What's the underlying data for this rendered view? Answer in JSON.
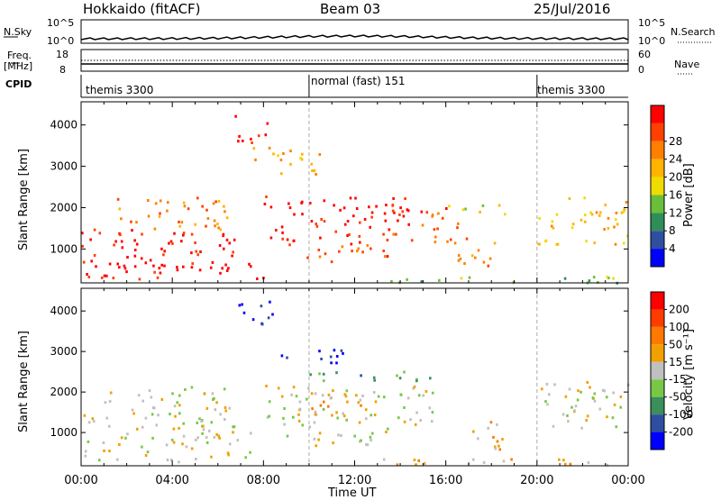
{
  "header": {
    "station": "Hokkaido (fitACF)",
    "beam": "Beam 03",
    "date": "25/Jul/2016"
  },
  "strips": {
    "nsky": "N.Sky",
    "nsky_ticks": [
      "10^5",
      "10^0"
    ],
    "nsearch": "N.Search",
    "nsearch_ticks": [
      "10^5",
      "10^0"
    ],
    "freq": "Freq.",
    "freq_unit": "[MHz]",
    "freq_ticks": [
      "18",
      "8"
    ],
    "nave": "Nave",
    "nave_ticks": [
      "60",
      "0"
    ],
    "cpid": "CPID",
    "modes": [
      "themis 3300",
      "normal (fast) 151",
      "themis 3300"
    ]
  },
  "colors": {
    "power": [
      "#0000ff",
      "#2e4fa0",
      "#2f8e57",
      "#6abf3a",
      "#f0dc00",
      "#ffb400",
      "#ff8000",
      "#ff4000",
      "#ff0000"
    ],
    "velocity": [
      "#0000ff",
      "#2e4fa0",
      "#3a8f5a",
      "#78c846",
      "#c0c0c0",
      "#f0a000",
      "#ff7800",
      "#ff3c00",
      "#ff0000"
    ]
  },
  "chart_data": [
    {
      "type": "heatmap",
      "name": "power",
      "ylabel": "Slant Range [km]",
      "ylim": [
        180,
        4560
      ],
      "y_ticks": [
        1000,
        2000,
        3000,
        4000
      ],
      "x_ticks": [
        "00:00",
        "04:00",
        "08:00",
        "12:00",
        "16:00",
        "20:00",
        "00:00"
      ],
      "colorbar_label": "Power [dB]",
      "colorbar_ticks": [
        "4",
        "8",
        "12",
        "16",
        "20",
        "24",
        "28"
      ],
      "blobs": [
        {
          "t0": 0.0,
          "t1": 7.0,
          "r0": 450,
          "r1": 1500,
          "level": 8
        },
        {
          "t0": 0.0,
          "t1": 8.0,
          "r0": 300,
          "r1": 700,
          "level": 8
        },
        {
          "t0": 1.0,
          "t1": 6.5,
          "r0": 1500,
          "r1": 2300,
          "level": 6
        },
        {
          "t0": 8.0,
          "t1": 14.5,
          "r0": 1200,
          "r1": 2300,
          "level": 8
        },
        {
          "t0": 9.0,
          "t1": 13.5,
          "r0": 700,
          "r1": 1200,
          "level": 7
        },
        {
          "t0": 13.5,
          "t1": 16.5,
          "r0": 1100,
          "r1": 2100,
          "level": 7
        },
        {
          "t0": 6.7,
          "t1": 8.3,
          "r0": 3600,
          "r1": 4300,
          "level": 8
        },
        {
          "t0": 7.5,
          "t1": 10.5,
          "r0": 2800,
          "r1": 3500,
          "level": 5
        },
        {
          "t0": 16.5,
          "t1": 18.5,
          "r0": 600,
          "r1": 1300,
          "level": 6
        },
        {
          "t0": 20.0,
          "t1": 24.0,
          "r0": 1100,
          "r1": 2300,
          "level": 5
        },
        {
          "t0": 16.0,
          "t1": 18.8,
          "r0": 1800,
          "r1": 2100,
          "level": 4
        },
        {
          "t0": 13.0,
          "t1": 24.0,
          "r0": 200,
          "r1": 380,
          "level": 3
        }
      ]
    },
    {
      "type": "heatmap",
      "name": "velocity",
      "ylabel": "Slant Range [km]",
      "xlabel": "Time UT",
      "ylim": [
        180,
        4560
      ],
      "y_ticks": [
        1000,
        2000,
        3000,
        4000
      ],
      "x_ticks": [
        "00:00",
        "04:00",
        "08:00",
        "12:00",
        "16:00",
        "20:00",
        "00:00"
      ],
      "colorbar_label": "Velocity [m s⁻¹]",
      "colorbar_ticks": [
        "200",
        "100",
        "50",
        "15",
        "-15",
        "-50",
        "-100",
        "-200"
      ],
      "blobs": [
        {
          "t0": 0.0,
          "t1": 7.5,
          "r0": 300,
          "r1": 1500,
          "level": 4
        },
        {
          "t0": 1.0,
          "t1": 6.5,
          "r0": 1500,
          "r1": 2200,
          "level": 4
        },
        {
          "t0": 8.0,
          "t1": 15.5,
          "r0": 1200,
          "r1": 2200,
          "level": 4
        },
        {
          "t0": 9.0,
          "t1": 13.5,
          "r0": 700,
          "r1": 1200,
          "level": 4
        },
        {
          "t0": 10.0,
          "t1": 12.5,
          "r0": 1300,
          "r1": 2100,
          "level": 5
        },
        {
          "t0": 6.7,
          "t1": 8.5,
          "r0": 3600,
          "r1": 4300,
          "level": 0
        },
        {
          "t0": 8.3,
          "t1": 11.5,
          "r0": 2700,
          "r1": 3100,
          "level": 0
        },
        {
          "t0": 10.0,
          "t1": 15.5,
          "r0": 2300,
          "r1": 2600,
          "level": 2
        },
        {
          "t0": 16.5,
          "t1": 18.5,
          "r0": 600,
          "r1": 1300,
          "level": 5
        },
        {
          "t0": 20.0,
          "t1": 24.0,
          "r0": 1100,
          "r1": 2300,
          "level": 4
        },
        {
          "t0": 13.0,
          "t1": 24.0,
          "r0": 200,
          "r1": 380,
          "level": 5
        }
      ]
    }
  ]
}
